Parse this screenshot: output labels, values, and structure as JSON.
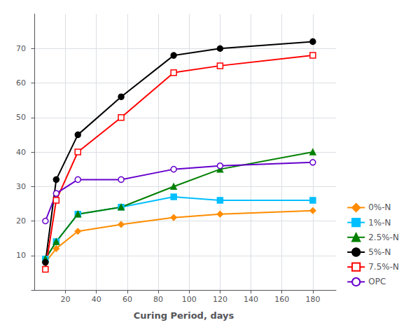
{
  "chart_data": {
    "type": "line",
    "xlabel": "Curing Period, days",
    "series": [
      {
        "name": "0%-N",
        "color": "#FF8C00",
        "marker": "diamond",
        "x": [
          7,
          14,
          28,
          56,
          90,
          120,
          180
        ],
        "values": [
          8,
          12,
          17,
          19,
          21,
          22,
          23
        ]
      },
      {
        "name": "1%-N",
        "color": "#00BFFF",
        "marker": "square",
        "x": [
          7,
          14,
          28,
          56,
          90,
          120,
          180
        ],
        "values": [
          9,
          14,
          22,
          24,
          27,
          26,
          26
        ]
      },
      {
        "name": "2.5%-N",
        "color": "#008000",
        "marker": "triangle",
        "x": [
          7,
          14,
          28,
          56,
          90,
          120,
          180
        ],
        "values": [
          9,
          14,
          22,
          24,
          30,
          35,
          40
        ]
      },
      {
        "name": "5%-N",
        "color": "#000000",
        "marker": "circle",
        "x": [
          7,
          14,
          28,
          56,
          90,
          120,
          180
        ],
        "values": [
          8,
          32,
          45,
          56,
          68,
          70,
          72
        ]
      },
      {
        "name": "7.5%-N",
        "color": "#FF0000",
        "marker": "open_square",
        "x": [
          7,
          14,
          28,
          56,
          90,
          120,
          180
        ],
        "values": [
          6,
          26,
          40,
          50,
          63,
          65,
          68
        ]
      },
      {
        "name": "OPC",
        "color": "#6600CC",
        "marker": "open_circle",
        "x": [
          7,
          14,
          28,
          56,
          90,
          120,
          180
        ],
        "values": [
          20,
          28,
          32,
          32,
          35,
          36,
          37
        ]
      }
    ],
    "xlim": [
      -2,
      195
    ],
    "ylim": [
      0,
      80
    ],
    "xticks": [
      20,
      40,
      60,
      80,
      100,
      120,
      140,
      160,
      180
    ],
    "yticks": [
      10,
      20,
      30,
      40,
      50,
      60,
      70
    ],
    "grid": true,
    "legend": "lower right"
  }
}
